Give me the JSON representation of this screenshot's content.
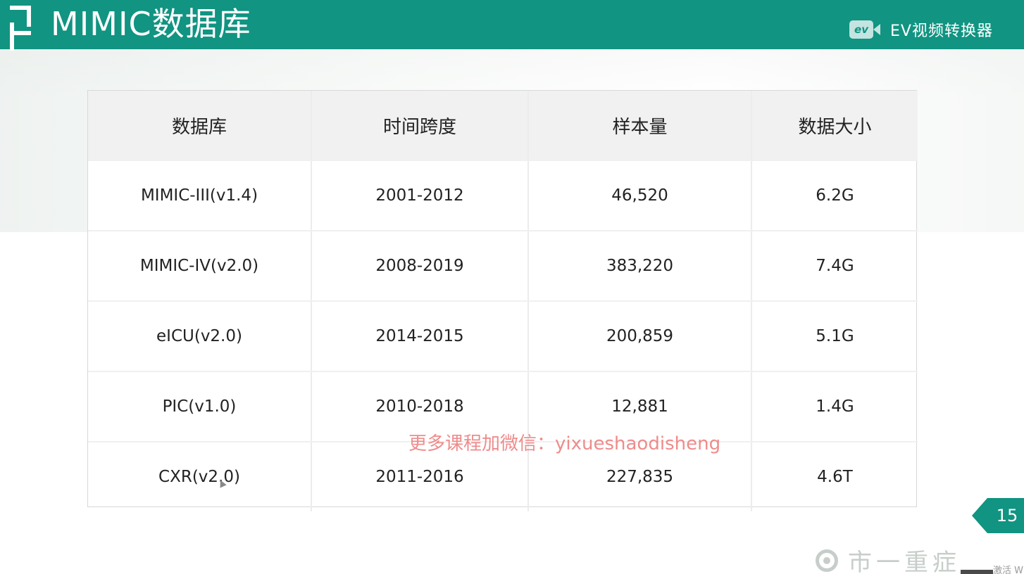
{
  "header": {
    "title": "MIMIC数据库",
    "ev_logo_text": "ev",
    "ev_label": "EV视频转换器"
  },
  "table": {
    "headers": [
      "数据库",
      "时间跨度",
      "样本量",
      "数据大小"
    ],
    "rows": [
      [
        "MIMIC-III(v1.4)",
        "2001-2012",
        "46,520",
        "6.2G"
      ],
      [
        "MIMIC-IV(v2.0)",
        "2008-2019",
        "383,220",
        "7.4G"
      ],
      [
        "eICU(v2.0)",
        "2014-2015",
        "200,859",
        "5.1G"
      ],
      [
        "PIC(v1.0)",
        "2010-2018",
        "12,881",
        "1.4G"
      ],
      [
        "CXR(v2.0)",
        "2011-2016",
        "227,835",
        "4.6T"
      ]
    ]
  },
  "watermark": "更多课程加微信：yixueshaodisheng",
  "page_number": "15",
  "footer": {
    "logo_text": "市一重症",
    "corner_text": "激活 W"
  },
  "colors": {
    "header_bg": "#119482",
    "header_text": "#ffffff",
    "table_header_bg": "#f1f1f1",
    "watermark": "#ec7878"
  }
}
